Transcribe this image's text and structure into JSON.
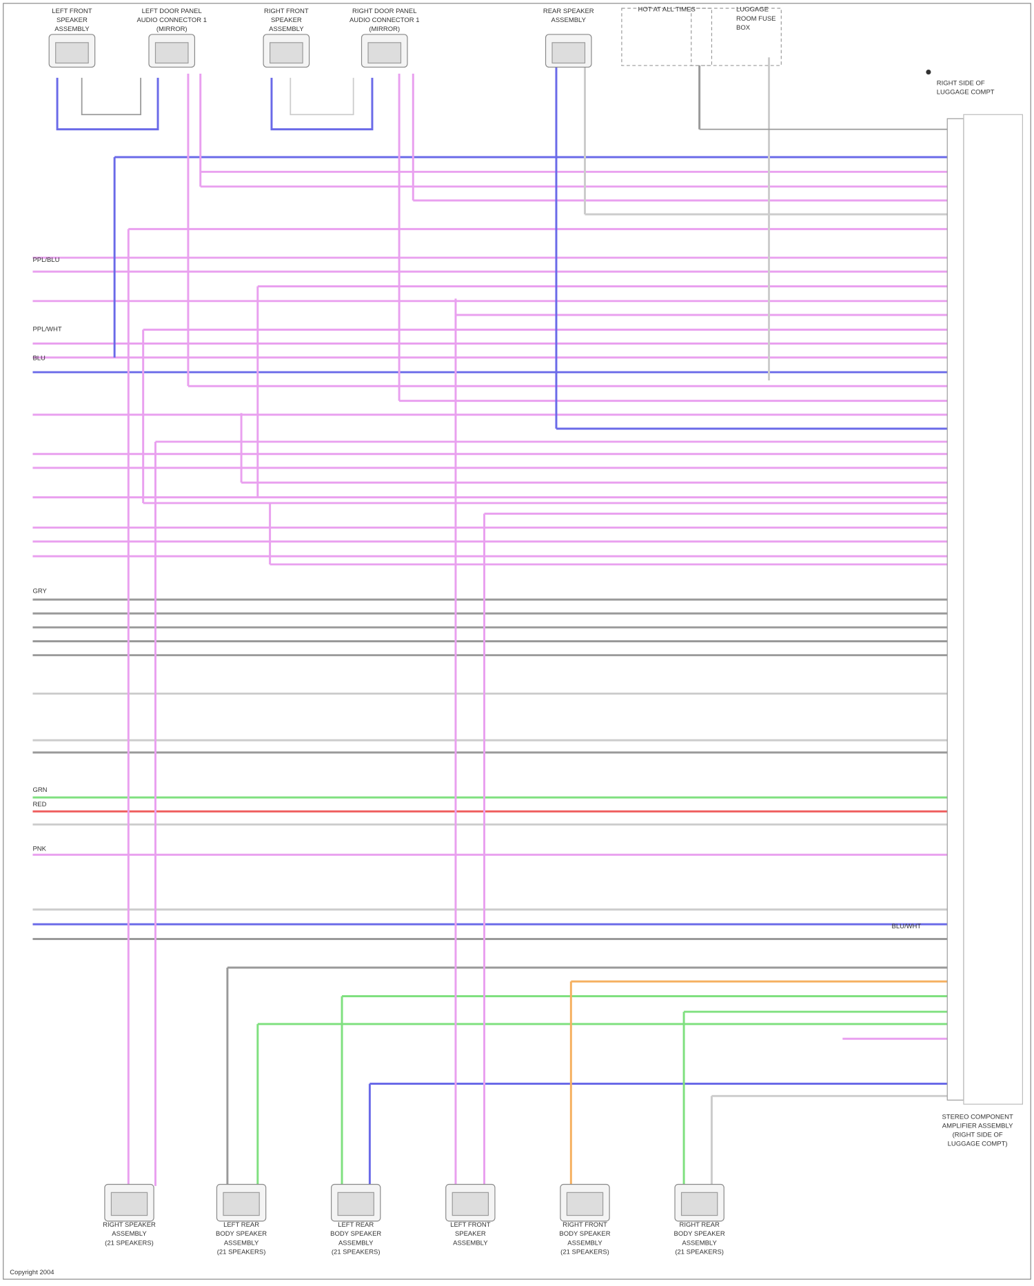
{
  "top_components": [
    {
      "lines": [
        "LEFT FRONT",
        "SPEAKER",
        "ASSEMBLY"
      ]
    },
    {
      "lines": [
        "LEFT DOOR PANEL",
        "AUDIO CONNECTOR 1",
        "(MIRROR)"
      ]
    },
    {
      "lines": [
        "RIGHT FRONT",
        "SPEAKER",
        "ASSEMBLY"
      ]
    },
    {
      "lines": [
        "RIGHT DOOR PANEL",
        "AUDIO CONNECTOR 1",
        "(MIRROR)"
      ]
    },
    {
      "lines": [
        "REAR SPEAKER",
        "ASSEMBLY"
      ]
    },
    {
      "lines": [
        "HOT AT ALL TIMES"
      ]
    },
    {
      "lines": [
        "LUGGAGE",
        "ROOM FUSE",
        "BOX"
      ]
    }
  ],
  "ground": {
    "lines": [
      "RIGHT SIDE OF",
      "LUGGAGE COMPT"
    ]
  },
  "amplifier": {
    "lines": [
      "STEREO COMPONENT",
      "AMPLIFIER ASSEMBLY",
      "(RIGHT SIDE OF",
      "LUGGAGE COMPT)"
    ]
  },
  "bottom_components": [
    {
      "lines": [
        "RIGHT SPEAKER",
        "ASSEMBLY",
        "(21 SPEAKERS)"
      ]
    },
    {
      "lines": [
        "LEFT REAR",
        "BODY SPEAKER",
        "ASSEMBLY",
        "(21 SPEAKERS)"
      ]
    },
    {
      "lines": [
        "LEFT REAR",
        "BODY SPEAKER",
        "ASSEMBLY",
        "(21 SPEAKERS)"
      ]
    },
    {
      "lines": [
        "LEFT FRONT",
        "SPEAKER",
        "ASSEMBLY"
      ]
    },
    {
      "lines": [
        "RIGHT FRONT",
        "BODY SPEAKER",
        "ASSEMBLY",
        "(21 SPEAKERS)"
      ]
    },
    {
      "lines": [
        "RIGHT REAR",
        "BODY SPEAKER",
        "ASSEMBLY",
        "(21 SPEAKERS)"
      ]
    }
  ],
  "wire_labels": [
    "PPL/BLU",
    "PPL/WHT",
    "BLU",
    "GRY",
    "GRN",
    "RED",
    "PNK",
    "BLU/WHT"
  ],
  "footer": "Copyright 2004"
}
